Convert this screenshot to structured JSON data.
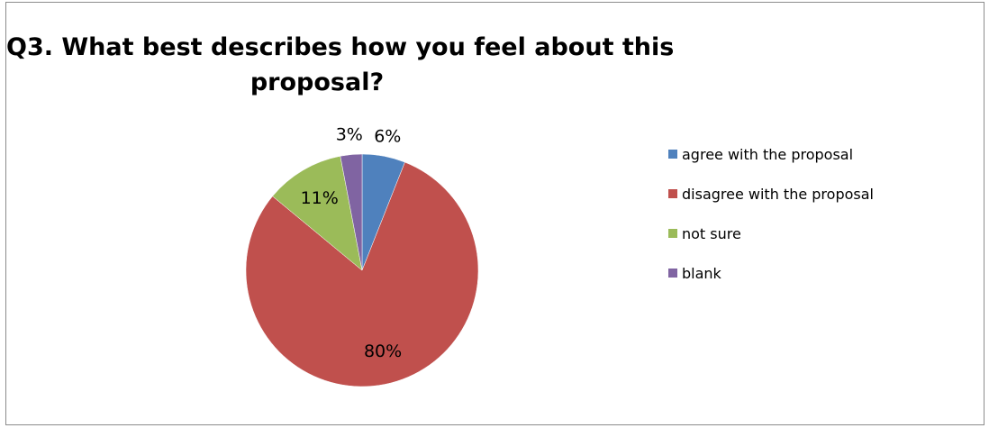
{
  "chart_data": {
    "type": "pie",
    "title": "Q3. What best describes how you feel about this proposal?",
    "title_lines": [
      "Q3. What best describes how you feel about this",
      "proposal?"
    ],
    "categories": [
      "agree with the proposal",
      "disagree with the proposal",
      "not sure",
      "blank"
    ],
    "values": [
      6,
      80,
      11,
      3
    ],
    "data_labels": [
      "6%",
      "80%",
      "11%",
      "3%"
    ],
    "colors": [
      "#4f81bd",
      "#c0504d",
      "#9bbb59",
      "#8064a2"
    ],
    "start_angle_deg": 0,
    "direction": "clockwise",
    "legend_position": "right"
  }
}
